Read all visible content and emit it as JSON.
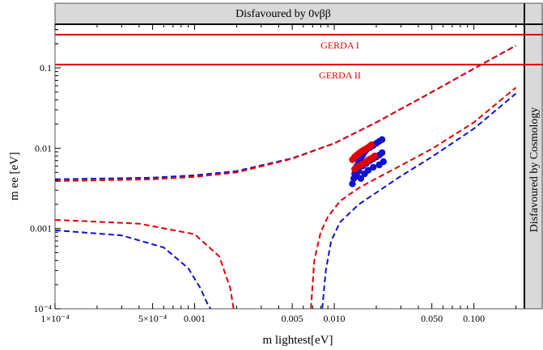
{
  "chart_data": {
    "type": "line",
    "title": "",
    "xlabel": "m lightest[eV]",
    "ylabel": "m ee [eV]",
    "x_scale": "log",
    "y_scale": "log",
    "xlim": [
      0.0001,
      0.23
    ],
    "ylim": [
      0.0001,
      0.35
    ],
    "x_ticks": [
      {
        "value": 0.0001,
        "label": "1×10⁻⁴"
      },
      {
        "value": 0.0005,
        "label": "5×10⁻⁴"
      },
      {
        "value": 0.001,
        "label": "0.001"
      },
      {
        "value": 0.005,
        "label": "0.005"
      },
      {
        "value": 0.01,
        "label": "0.010"
      },
      {
        "value": 0.05,
        "label": "0.050"
      },
      {
        "value": 0.1,
        "label": "0.100"
      }
    ],
    "y_ticks": [
      {
        "value": 0.0001,
        "label": "10⁻⁴"
      },
      {
        "value": 0.001,
        "label": "0.001"
      },
      {
        "value": 0.01,
        "label": "0.01"
      },
      {
        "value": 0.1,
        "label": "0.1"
      }
    ],
    "bands": {
      "top": {
        "label": "Disfavoured by 0νββ",
        "color": "#d9d9d9"
      },
      "right": {
        "label": "Disfavoured by Cosmology",
        "color": "#d9d9d9"
      }
    },
    "limits": [
      {
        "name": "GERDA I",
        "y": 0.26,
        "color": "#e00000"
      },
      {
        "name": "GERDA II",
        "y": 0.11,
        "color": "#e00000"
      }
    ],
    "curves": [
      {
        "style": "dashed",
        "color": "#1010d0",
        "x": [
          0.0001,
          0.0005,
          0.001,
          0.002,
          0.005,
          0.01,
          0.02,
          0.05,
          0.1,
          0.2
        ],
        "y": [
          0.0041,
          0.0043,
          0.0046,
          0.0052,
          0.0075,
          0.0115,
          0.021,
          0.05,
          0.098,
          0.19
        ]
      },
      {
        "style": "dashed",
        "color": "#e00000",
        "x": [
          0.0001,
          0.0005,
          0.001,
          0.002,
          0.005,
          0.01,
          0.02,
          0.05,
          0.1,
          0.2
        ],
        "y": [
          0.0039,
          0.0041,
          0.0044,
          0.005,
          0.0074,
          0.0115,
          0.021,
          0.05,
          0.098,
          0.19
        ]
      },
      {
        "style": "dashed",
        "color": "#1010d0",
        "x": [
          0.0001,
          0.0003,
          0.0006,
          0.0009,
          0.0011,
          0.00125,
          0.0013
        ],
        "y": [
          0.00095,
          0.00082,
          0.00058,
          0.00032,
          0.00018,
          0.00011,
          0.0001
        ]
      },
      {
        "style": "dashed",
        "color": "#e00000",
        "x": [
          0.0001,
          0.0004,
          0.001,
          0.0015,
          0.0018,
          0.0019
        ],
        "y": [
          0.00128,
          0.00115,
          0.00085,
          0.00045,
          0.00018,
          0.0001
        ]
      },
      {
        "style": "dashed",
        "color": "#1010d0",
        "x": [
          0.0082,
          0.0087,
          0.0095,
          0.011,
          0.015,
          0.02,
          0.03,
          0.05,
          0.1,
          0.2
        ],
        "y": [
          0.0001,
          0.0003,
          0.0007,
          0.0012,
          0.002,
          0.0028,
          0.0045,
          0.0078,
          0.0175,
          0.048
        ]
      },
      {
        "style": "dashed",
        "color": "#e00000",
        "x": [
          0.0068,
          0.0072,
          0.008,
          0.009,
          0.011,
          0.015,
          0.02,
          0.03,
          0.05,
          0.1,
          0.2
        ],
        "y": [
          0.0001,
          0.0004,
          0.0009,
          0.0014,
          0.0022,
          0.0032,
          0.0042,
          0.0061,
          0.0098,
          0.021,
          0.057
        ]
      }
    ],
    "scatter": [
      {
        "color": "#1010d0",
        "points": [
          [
            0.0135,
            0.0036
          ],
          [
            0.0138,
            0.0042
          ],
          [
            0.014,
            0.0048
          ],
          [
            0.0142,
            0.0055
          ],
          [
            0.0145,
            0.006
          ],
          [
            0.015,
            0.0068
          ],
          [
            0.0155,
            0.0075
          ],
          [
            0.016,
            0.0082
          ],
          [
            0.0165,
            0.009
          ],
          [
            0.017,
            0.0096
          ],
          [
            0.018,
            0.0102
          ],
          [
            0.019,
            0.0108
          ],
          [
            0.02,
            0.0115
          ],
          [
            0.021,
            0.0122
          ],
          [
            0.022,
            0.0128
          ],
          [
            0.0145,
            0.0045
          ],
          [
            0.015,
            0.0052
          ],
          [
            0.016,
            0.006
          ],
          [
            0.017,
            0.0065
          ],
          [
            0.018,
            0.007
          ],
          [
            0.019,
            0.0074
          ],
          [
            0.02,
            0.0078
          ],
          [
            0.021,
            0.0082
          ],
          [
            0.022,
            0.0088
          ],
          [
            0.0155,
            0.0042
          ],
          [
            0.0165,
            0.0048
          ],
          [
            0.0175,
            0.0053
          ],
          [
            0.019,
            0.0058
          ],
          [
            0.021,
            0.0062
          ],
          [
            0.0225,
            0.0068
          ]
        ]
      },
      {
        "color": "#e00000",
        "points": [
          [
            0.0135,
            0.0072
          ],
          [
            0.014,
            0.0078
          ],
          [
            0.0145,
            0.0082
          ],
          [
            0.015,
            0.0086
          ],
          [
            0.0155,
            0.009
          ],
          [
            0.016,
            0.0093
          ],
          [
            0.0165,
            0.0096
          ],
          [
            0.017,
            0.0099
          ],
          [
            0.0175,
            0.0102
          ],
          [
            0.018,
            0.0106
          ],
          [
            0.0185,
            0.011
          ],
          [
            0.014,
            0.0055
          ],
          [
            0.0145,
            0.0058
          ],
          [
            0.015,
            0.006
          ],
          [
            0.0155,
            0.0062
          ],
          [
            0.016,
            0.0064
          ],
          [
            0.0165,
            0.0066
          ],
          [
            0.017,
            0.0068
          ],
          [
            0.0175,
            0.0071
          ],
          [
            0.018,
            0.0073
          ],
          [
            0.0185,
            0.0075
          ],
          [
            0.019,
            0.0077
          ],
          [
            0.0195,
            0.008
          ]
        ]
      }
    ],
    "grid": false,
    "legend": "none"
  }
}
